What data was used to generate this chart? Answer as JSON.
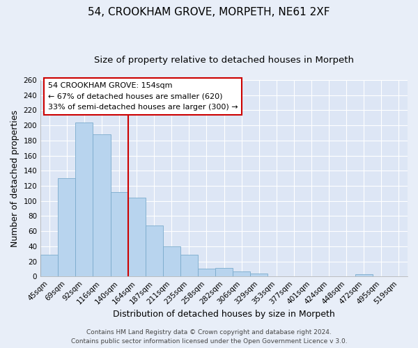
{
  "title": "54, CROOKHAM GROVE, MORPETH, NE61 2XF",
  "subtitle": "Size of property relative to detached houses in Morpeth",
  "xlabel": "Distribution of detached houses by size in Morpeth",
  "ylabel": "Number of detached properties",
  "bar_labels": [
    "45sqm",
    "69sqm",
    "92sqm",
    "116sqm",
    "140sqm",
    "164sqm",
    "187sqm",
    "211sqm",
    "235sqm",
    "258sqm",
    "282sqm",
    "306sqm",
    "329sqm",
    "353sqm",
    "377sqm",
    "401sqm",
    "424sqm",
    "448sqm",
    "472sqm",
    "495sqm",
    "519sqm"
  ],
  "bar_values": [
    29,
    130,
    204,
    188,
    112,
    104,
    67,
    40,
    29,
    10,
    11,
    7,
    4,
    0,
    0,
    0,
    0,
    0,
    3,
    0,
    0
  ],
  "bar_color": "#b8d4ee",
  "bar_edge_color": "#7aabcc",
  "vline_index": 5,
  "vline_color": "#cc0000",
  "annotation_title": "54 CROOKHAM GROVE: 154sqm",
  "annotation_line1": "← 67% of detached houses are smaller (620)",
  "annotation_line2": "33% of semi-detached houses are larger (300) →",
  "annotation_box_color": "#ffffff",
  "annotation_box_edge": "#cc0000",
  "ylim": [
    0,
    260
  ],
  "yticks": [
    0,
    20,
    40,
    60,
    80,
    100,
    120,
    140,
    160,
    180,
    200,
    220,
    240,
    260
  ],
  "footer1": "Contains HM Land Registry data © Crown copyright and database right 2024.",
  "footer2": "Contains public sector information licensed under the Open Government Licence v 3.0.",
  "bg_color": "#e8eef8",
  "plot_bg_color": "#dde6f5",
  "grid_color": "#ffffff",
  "title_fontsize": 11,
  "subtitle_fontsize": 9.5,
  "axis_label_fontsize": 9,
  "tick_fontsize": 7.5,
  "footer_fontsize": 6.5
}
